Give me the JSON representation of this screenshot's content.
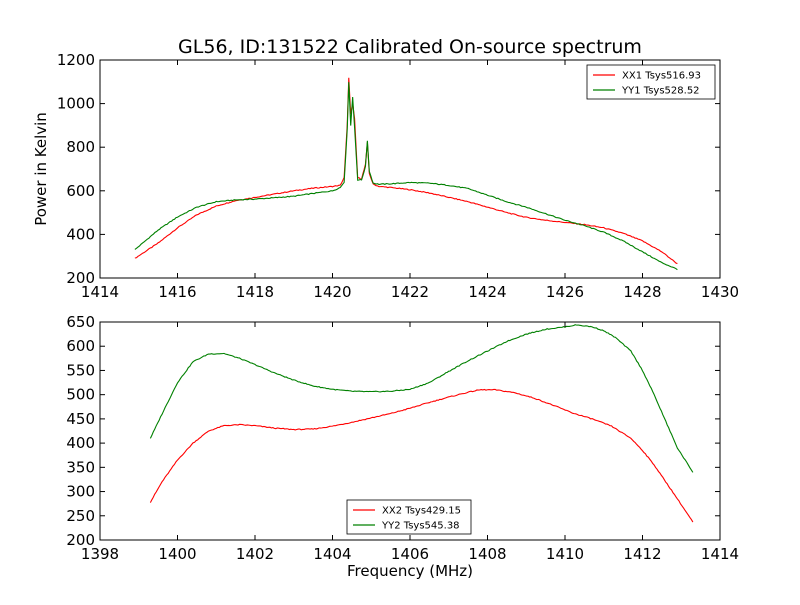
{
  "figure": {
    "title": "GL56, ID:131522 Calibrated On-source spectrum",
    "ylabel": "Power in Kelvin",
    "xlabel": "Frequency (MHz)"
  },
  "chart_data": [
    {
      "type": "line",
      "xlim": [
        1414,
        1430
      ],
      "ylim": [
        200,
        1200
      ],
      "xticks": [
        1414,
        1416,
        1418,
        1420,
        1422,
        1424,
        1426,
        1428,
        1430
      ],
      "yticks": [
        200,
        400,
        600,
        800,
        1000,
        1200
      ],
      "legend": "top-right",
      "grid": false,
      "series": [
        {
          "name": "XX1 Tsys516.93",
          "color": "#ff0000",
          "x": [
            1414.9,
            1415.5,
            1416.0,
            1416.5,
            1417.0,
            1417.5,
            1418.0,
            1418.5,
            1419.0,
            1419.5,
            1420.0,
            1420.2,
            1420.3,
            1420.38,
            1420.42,
            1420.47,
            1420.52,
            1420.57,
            1420.65,
            1420.75,
            1420.85,
            1420.9,
            1420.95,
            1421.05,
            1421.2,
            1421.5,
            1422.0,
            1422.5,
            1423.0,
            1423.5,
            1424.0,
            1424.5,
            1425.0,
            1425.5,
            1426.0,
            1426.5,
            1427.0,
            1427.5,
            1428.0,
            1428.5,
            1428.9
          ],
          "y": [
            290,
            360,
            430,
            490,
            530,
            555,
            570,
            585,
            600,
            612,
            620,
            625,
            660,
            900,
            1120,
            950,
            1000,
            930,
            660,
            655,
            720,
            820,
            680,
            630,
            620,
            615,
            605,
            590,
            570,
            550,
            525,
            500,
            478,
            465,
            455,
            445,
            430,
            405,
            370,
            320,
            265
          ]
        },
        {
          "name": "YY1 Tsys528.52",
          "color": "#008000",
          "x": [
            1414.9,
            1415.5,
            1416.0,
            1416.5,
            1417.0,
            1417.5,
            1418.0,
            1418.5,
            1419.0,
            1419.5,
            1420.0,
            1420.2,
            1420.3,
            1420.38,
            1420.42,
            1420.47,
            1420.52,
            1420.57,
            1420.65,
            1420.75,
            1420.85,
            1420.9,
            1420.95,
            1421.05,
            1421.2,
            1421.5,
            1422.0,
            1422.5,
            1423.0,
            1423.5,
            1424.0,
            1424.5,
            1425.0,
            1425.5,
            1426.0,
            1426.5,
            1427.0,
            1427.5,
            1428.0,
            1428.5,
            1428.9
          ],
          "y": [
            330,
            420,
            480,
            525,
            550,
            558,
            562,
            568,
            575,
            588,
            600,
            615,
            640,
            880,
            1100,
            900,
            1030,
            890,
            650,
            650,
            710,
            830,
            690,
            635,
            630,
            632,
            638,
            635,
            625,
            610,
            580,
            550,
            525,
            495,
            465,
            440,
            410,
            370,
            320,
            270,
            240
          ]
        }
      ]
    },
    {
      "type": "line",
      "xlim": [
        1398,
        1414
      ],
      "ylim": [
        200,
        650
      ],
      "xticks": [
        1398,
        1400,
        1402,
        1404,
        1406,
        1408,
        1410,
        1412,
        1414
      ],
      "yticks": [
        200,
        250,
        300,
        350,
        400,
        450,
        500,
        550,
        600,
        650
      ],
      "legend": "bottom-center",
      "grid": false,
      "series": [
        {
          "name": "XX2 Tsys429.15",
          "color": "#ff0000",
          "x": [
            1399.3,
            1399.6,
            1400.0,
            1400.4,
            1400.8,
            1401.2,
            1401.6,
            1402.0,
            1402.5,
            1403.0,
            1403.5,
            1404.0,
            1404.5,
            1405.0,
            1405.5,
            1406.0,
            1406.5,
            1407.0,
            1407.5,
            1407.8,
            1408.2,
            1408.7,
            1409.2,
            1409.7,
            1410.2,
            1410.7,
            1411.2,
            1411.7,
            1412.0,
            1412.3,
            1412.6,
            1412.9,
            1413.3
          ],
          "y": [
            278,
            320,
            365,
            400,
            425,
            436,
            438,
            436,
            431,
            428,
            429,
            435,
            443,
            452,
            461,
            472,
            484,
            495,
            505,
            510,
            510,
            504,
            493,
            478,
            462,
            450,
            435,
            410,
            385,
            355,
            320,
            285,
            237
          ]
        },
        {
          "name": "YY2 Tsys545.38",
          "color": "#008000",
          "x": [
            1399.3,
            1399.6,
            1400.0,
            1400.4,
            1400.8,
            1401.2,
            1401.6,
            1402.0,
            1402.5,
            1403.0,
            1403.5,
            1404.0,
            1404.5,
            1405.0,
            1405.5,
            1406.0,
            1406.5,
            1407.0,
            1407.5,
            1408.0,
            1408.5,
            1409.0,
            1409.5,
            1410.0,
            1410.3,
            1410.7,
            1411.0,
            1411.3,
            1411.7,
            1412.0,
            1412.3,
            1412.6,
            1412.9,
            1413.3
          ],
          "y": [
            410,
            460,
            525,
            568,
            584,
            585,
            575,
            562,
            545,
            530,
            518,
            511,
            507,
            506,
            507,
            511,
            525,
            548,
            570,
            590,
            610,
            625,
            635,
            640,
            644,
            640,
            632,
            618,
            590,
            550,
            500,
            445,
            390,
            340
          ]
        }
      ]
    }
  ]
}
